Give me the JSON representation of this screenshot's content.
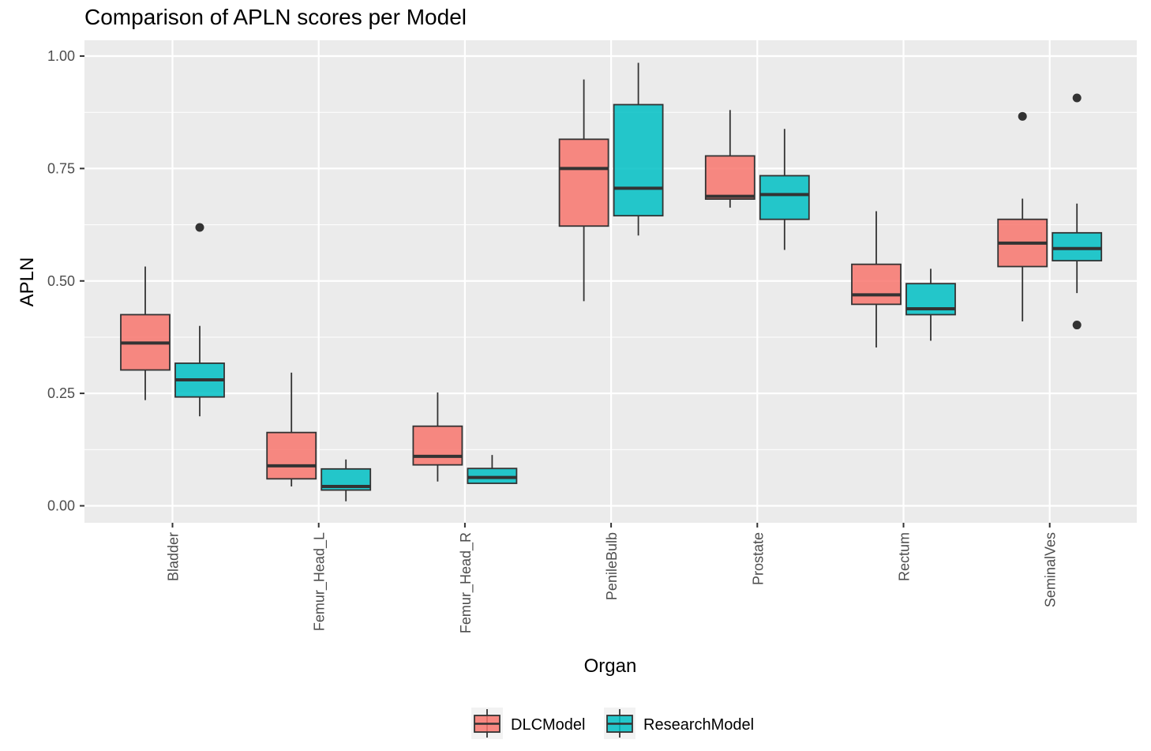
{
  "chart_data": {
    "type": "boxplot",
    "title": "Comparison of APLN scores per Model",
    "xlabel": "Organ",
    "ylabel": "APLN",
    "ylim": [
      -0.04,
      1.035
    ],
    "yticks": [
      0,
      0.25,
      0.5,
      0.75,
      1
    ],
    "ytick_labels": [
      "0.00",
      "0.25",
      "0.50",
      "0.75",
      "1.00"
    ],
    "categories": [
      "Bladder",
      "Femur_Head_L",
      "Femur_Head_R",
      "PenileBulb",
      "Prostate",
      "Rectum",
      "SeminalVes"
    ],
    "grid": true,
    "legend_position": "bottom",
    "series": [
      {
        "name": "DLCModel",
        "color": "#F8766D",
        "boxes": [
          {
            "whisker_low": 0.235,
            "q1": 0.302,
            "median": 0.362,
            "q3": 0.425,
            "whisker_high": 0.532,
            "outliers": []
          },
          {
            "whisker_low": 0.043,
            "q1": 0.06,
            "median": 0.089,
            "q3": 0.163,
            "whisker_high": 0.296,
            "outliers": []
          },
          {
            "whisker_low": 0.054,
            "q1": 0.091,
            "median": 0.11,
            "q3": 0.177,
            "whisker_high": 0.252,
            "outliers": []
          },
          {
            "whisker_low": 0.455,
            "q1": 0.622,
            "median": 0.75,
            "q3": 0.815,
            "whisker_high": 0.948,
            "outliers": []
          },
          {
            "whisker_low": 0.663,
            "q1": 0.682,
            "median": 0.688,
            "q3": 0.778,
            "whisker_high": 0.88,
            "outliers": []
          },
          {
            "whisker_low": 0.352,
            "q1": 0.448,
            "median": 0.469,
            "q3": 0.537,
            "whisker_high": 0.655,
            "outliers": []
          },
          {
            "whisker_low": 0.41,
            "q1": 0.532,
            "median": 0.584,
            "q3": 0.637,
            "whisker_high": 0.683,
            "outliers": [
              0.866
            ]
          }
        ]
      },
      {
        "name": "ResearchModel",
        "color": "#00BFC4",
        "boxes": [
          {
            "whisker_low": 0.199,
            "q1": 0.242,
            "median": 0.28,
            "q3": 0.317,
            "whisker_high": 0.4,
            "outliers": [
              0.619
            ]
          },
          {
            "whisker_low": 0.01,
            "q1": 0.035,
            "median": 0.043,
            "q3": 0.082,
            "whisker_high": 0.103,
            "outliers": []
          },
          {
            "whisker_low": 0.05,
            "q1": 0.05,
            "median": 0.063,
            "q3": 0.083,
            "whisker_high": 0.113,
            "outliers": []
          },
          {
            "whisker_low": 0.601,
            "q1": 0.645,
            "median": 0.706,
            "q3": 0.892,
            "whisker_high": 0.985,
            "outliers": []
          },
          {
            "whisker_low": 0.569,
            "q1": 0.637,
            "median": 0.692,
            "q3": 0.734,
            "whisker_high": 0.838,
            "outliers": []
          },
          {
            "whisker_low": 0.367,
            "q1": 0.425,
            "median": 0.438,
            "q3": 0.494,
            "whisker_high": 0.527,
            "outliers": []
          },
          {
            "whisker_low": 0.473,
            "q1": 0.545,
            "median": 0.572,
            "q3": 0.607,
            "whisker_high": 0.672,
            "outliers": [
              0.402,
              0.907
            ]
          }
        ]
      }
    ]
  }
}
